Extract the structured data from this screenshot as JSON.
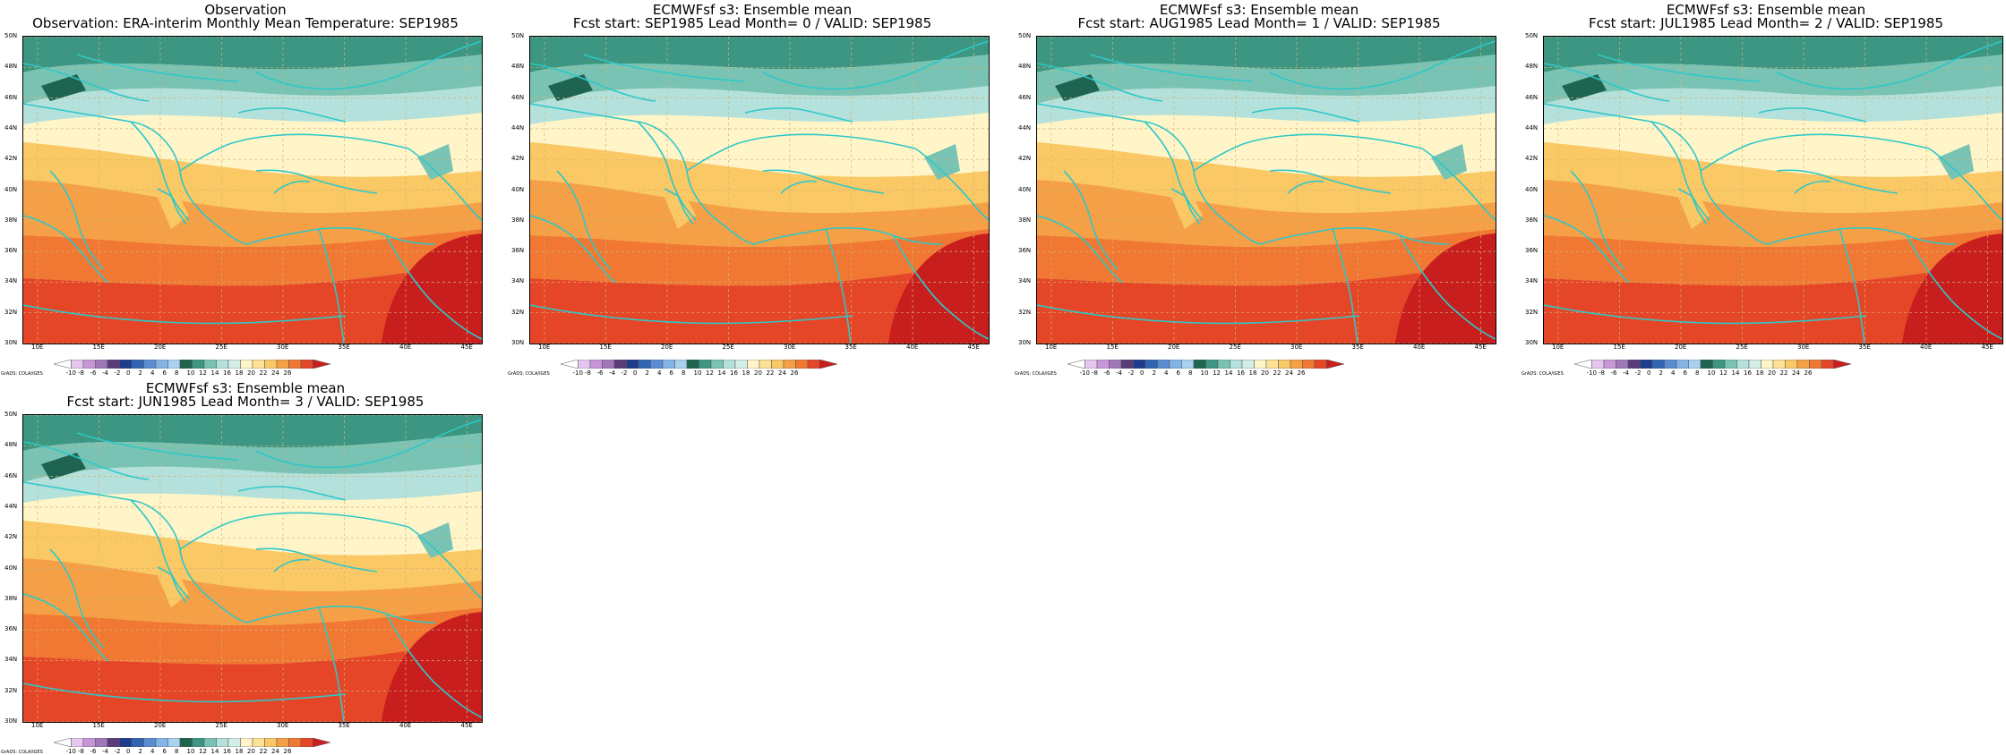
{
  "panels": [
    {
      "title": "Observation",
      "subtitle": "Observation: ERA-interim Monthly Mean Temperature: SEP1985"
    },
    {
      "title": "ECMWFsf s3: Ensemble mean",
      "subtitle": "Fcst start: SEP1985  Lead Month= 0 / VALID: SEP1985"
    },
    {
      "title": "ECMWFsf s3: Ensemble mean",
      "subtitle": "Fcst start: AUG1985  Lead Month= 1 / VALID: SEP1985"
    },
    {
      "title": "ECMWFsf s3: Ensemble mean",
      "subtitle": "Fcst start: JUL1985  Lead Month= 2 / VALID: SEP1985"
    },
    {
      "title": "ECMWFsf s3: Ensemble mean",
      "subtitle": "Fcst start: JUN1985  Lead Month= 3 / VALID: SEP1985"
    }
  ],
  "lat_labels": [
    "50N",
    "48N",
    "46N",
    "44N",
    "42N",
    "40N",
    "38N",
    "36N",
    "34N",
    "32N",
    "30N"
  ],
  "lon_labels": [
    "10E",
    "15E",
    "20E",
    "25E",
    "30E",
    "35E",
    "40E",
    "45E"
  ],
  "colorbar": {
    "labels": [
      "-10",
      "-8",
      "-6",
      "-4",
      "-2",
      "0",
      "2",
      "4",
      "6",
      "8",
      "10",
      "12",
      "14",
      "16",
      "18",
      "20",
      "22",
      "24",
      "26"
    ],
    "colors": [
      "#ffffff",
      "#e6c6f0",
      "#c896d8",
      "#a078b8",
      "#5a3c7a",
      "#1e3c8c",
      "#3264b4",
      "#5a8cd2",
      "#82b4e6",
      "#a8d2f0",
      "#1e6450",
      "#3c9682",
      "#78c3b4",
      "#b4e1dc",
      "#d2eee6",
      "#fff5c8",
      "#ffe196",
      "#fac864",
      "#f5a046",
      "#f07832",
      "#e64628",
      "#c81e1e"
    ],
    "source": "GrADS: COLA/IGES"
  },
  "map_colors": {
    "coast": "#2ec8c8",
    "grid": "#d4b478"
  }
}
